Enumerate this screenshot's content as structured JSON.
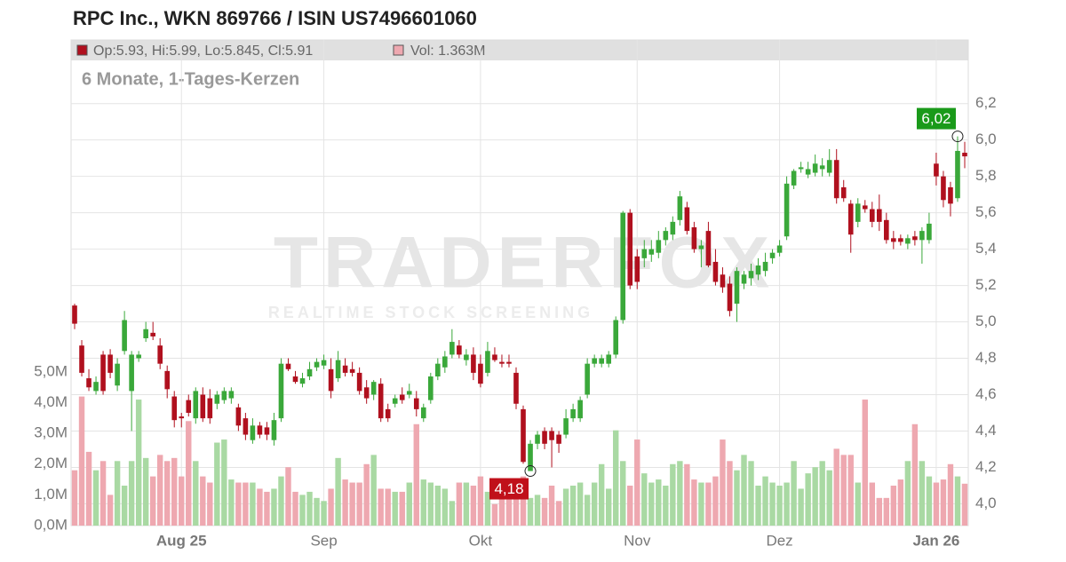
{
  "chart_data": {
    "type": "candlestick",
    "title": "RPC Inc., WKN 869766 / ISIN US7496601060",
    "subtitle": "6 Monate, 1-Tages-Kerzen",
    "legend": {
      "ohlc": "Op:5.93, Hi:5.99, Lo:5.845, Cl:5.91",
      "volume": "Vol: 1.363M"
    },
    "watermark": {
      "brand": "TRADERFOX",
      "tagline": "REALTIME STOCK SCREENING"
    },
    "annotations": [
      {
        "value": 6.02,
        "label": "6,02",
        "color": "#1a9a1a"
      },
      {
        "value": 4.18,
        "label": "4,18",
        "color": "#c0101a"
      }
    ],
    "categories": [
      null,
      null,
      null,
      null,
      null,
      null,
      null,
      null,
      null,
      null,
      null,
      null,
      null,
      null,
      null,
      "Aug 25",
      null,
      null,
      null,
      null,
      null,
      null,
      null,
      null,
      null,
      null,
      null,
      null,
      null,
      null,
      null,
      null,
      null,
      null,
      null,
      "Sep",
      null,
      null,
      null,
      null,
      null,
      null,
      null,
      null,
      null,
      null,
      null,
      null,
      null,
      null,
      null,
      null,
      null,
      null,
      null,
      null,
      null,
      "Okt",
      null,
      null,
      null,
      null,
      null,
      null,
      null,
      null,
      null,
      null,
      null,
      null,
      null,
      null,
      null,
      null,
      null,
      null,
      null,
      null,
      null,
      "Nov",
      null,
      null,
      null,
      null,
      null,
      null,
      null,
      null,
      null,
      null,
      null,
      null,
      null,
      null,
      null,
      null,
      null,
      null,
      null,
      "Dez",
      null,
      null,
      null,
      null,
      null,
      null,
      null,
      null,
      null,
      null,
      null,
      null,
      null,
      null,
      null,
      null,
      null,
      null,
      null,
      null,
      null,
      "Jan 26",
      null,
      null,
      null,
      null
    ],
    "open": [
      5.09,
      4.87,
      4.69,
      4.62,
      4.82,
      4.82,
      4.65,
      4.84,
      4.62,
      4.8,
      4.91,
      4.94,
      4.87,
      4.73,
      4.59,
      4.48,
      4.57,
      4.47,
      4.6,
      4.58,
      4.55,
      4.57,
      4.58,
      4.53,
      4.47,
      4.35,
      4.43,
      4.42,
      4.35,
      4.47,
      4.77,
      4.7,
      4.66,
      4.7,
      4.75,
      4.76,
      4.74,
      4.69,
      4.76,
      4.74,
      4.72,
      4.64,
      4.6,
      4.66,
      4.52,
      4.55,
      4.6,
      4.6,
      4.58,
      4.47,
      4.57,
      4.7,
      4.75,
      4.82,
      4.87,
      4.79,
      4.82,
      4.77,
      4.72,
      4.82,
      4.78,
      4.78,
      4.72,
      4.52,
      4.18,
      4.33,
      4.4,
      4.4,
      4.38,
      4.38,
      4.47,
      4.47,
      4.6,
      4.77,
      4.77,
      4.77,
      4.82,
      5.01,
      5.6,
      5.36,
      5.35,
      5.37,
      5.38,
      5.45,
      5.48,
      5.56,
      5.63,
      5.52,
      5.4,
      5.5,
      5.33,
      5.26,
      5.21,
      5.1,
      5.21,
      5.24,
      5.26,
      5.28,
      5.35,
      5.38,
      5.47,
      5.75,
      5.84,
      5.81,
      5.82,
      5.84,
      5.82,
      5.89,
      5.74,
      5.65,
      5.55,
      5.64,
      5.62,
      5.62,
      5.56,
      5.46,
      5.46,
      5.43,
      5.47,
      5.45,
      5.45,
      5.87,
      5.8,
      5.74,
      5.68,
      5.93
    ],
    "high": [
      5.1,
      4.9,
      4.74,
      4.7,
      4.84,
      4.85,
      4.8,
      5.06,
      4.84,
      4.84,
      5.0,
      5.0,
      4.91,
      4.76,
      4.62,
      4.5,
      4.6,
      4.64,
      4.64,
      4.63,
      4.62,
      4.64,
      4.64,
      4.55,
      4.5,
      4.47,
      4.45,
      4.45,
      4.5,
      4.8,
      4.8,
      4.73,
      4.72,
      4.78,
      4.8,
      4.82,
      4.8,
      4.84,
      4.8,
      4.78,
      4.75,
      4.68,
      4.68,
      4.69,
      4.55,
      4.6,
      4.64,
      4.66,
      4.62,
      4.55,
      4.72,
      4.8,
      4.84,
      4.96,
      4.9,
      4.85,
      4.86,
      4.82,
      4.89,
      4.86,
      4.82,
      4.82,
      4.75,
      4.54,
      4.35,
      4.4,
      4.42,
      4.42,
      4.4,
      4.52,
      4.55,
      4.59,
      4.8,
      4.82,
      4.82,
      4.84,
      5.03,
      5.61,
      5.62,
      5.4,
      5.45,
      5.45,
      5.5,
      5.52,
      5.58,
      5.72,
      5.66,
      5.55,
      5.45,
      5.55,
      5.4,
      5.3,
      5.25,
      5.3,
      5.28,
      5.32,
      5.35,
      5.38,
      5.4,
      5.45,
      5.8,
      5.84,
      5.88,
      5.88,
      5.92,
      5.9,
      5.95,
      5.95,
      5.78,
      5.67,
      5.68,
      5.67,
      5.66,
      5.7,
      5.6,
      5.5,
      5.48,
      5.48,
      5.5,
      5.52,
      5.6,
      5.93,
      5.83,
      5.77,
      6.02,
      5.99
    ],
    "low": [
      4.96,
      4.7,
      4.62,
      4.6,
      4.6,
      4.69,
      4.62,
      4.82,
      4.4,
      4.78,
      4.89,
      4.9,
      4.74,
      4.58,
      4.42,
      4.42,
      4.48,
      4.44,
      4.45,
      4.44,
      4.52,
      4.55,
      4.55,
      4.4,
      4.35,
      4.33,
      4.36,
      4.35,
      4.32,
      4.45,
      4.73,
      4.66,
      4.64,
      4.68,
      4.73,
      4.74,
      4.58,
      4.67,
      4.7,
      4.7,
      4.6,
      4.55,
      4.57,
      4.45,
      4.45,
      4.53,
      4.55,
      4.58,
      4.48,
      4.45,
      4.55,
      4.68,
      4.72,
      4.8,
      4.8,
      4.76,
      4.68,
      4.64,
      4.7,
      4.78,
      4.75,
      4.75,
      4.52,
      4.22,
      4.18,
      4.3,
      4.3,
      4.2,
      4.28,
      4.36,
      4.45,
      4.45,
      4.58,
      4.75,
      4.75,
      4.75,
      4.8,
      4.99,
      5.18,
      5.18,
      5.3,
      5.33,
      5.35,
      5.42,
      5.45,
      5.53,
      5.48,
      5.38,
      5.3,
      5.3,
      5.2,
      5.16,
      5.03,
      5.0,
      5.18,
      5.2,
      5.23,
      5.25,
      5.32,
      5.36,
      5.45,
      5.73,
      5.82,
      5.79,
      5.8,
      5.8,
      5.8,
      5.65,
      5.66,
      5.38,
      5.52,
      5.6,
      5.52,
      5.5,
      5.43,
      5.4,
      5.42,
      5.4,
      5.42,
      5.32,
      5.43,
      5.75,
      5.63,
      5.58,
      5.66,
      5.845
    ],
    "close": [
      4.99,
      4.72,
      4.64,
      4.67,
      4.62,
      4.72,
      4.77,
      5.01,
      4.82,
      4.82,
      4.96,
      4.92,
      4.77,
      4.63,
      4.46,
      4.47,
      4.5,
      4.62,
      4.47,
      4.47,
      4.6,
      4.62,
      4.62,
      4.43,
      4.38,
      4.43,
      4.38,
      4.38,
      4.46,
      4.77,
      4.74,
      4.67,
      4.69,
      4.74,
      4.78,
      4.79,
      4.62,
      4.79,
      4.72,
      4.72,
      4.62,
      4.58,
      4.67,
      4.47,
      4.47,
      4.58,
      4.57,
      4.62,
      4.52,
      4.53,
      4.7,
      4.77,
      4.81,
      4.89,
      4.82,
      4.82,
      4.72,
      4.66,
      4.84,
      4.79,
      4.77,
      4.77,
      4.55,
      4.23,
      4.33,
      4.38,
      4.33,
      4.35,
      4.33,
      4.47,
      4.52,
      4.57,
      4.77,
      4.8,
      4.8,
      4.82,
      5.01,
      5.6,
      5.2,
      5.22,
      5.4,
      5.4,
      5.45,
      5.5,
      5.55,
      5.69,
      5.5,
      5.4,
      5.42,
      5.31,
      5.22,
      5.19,
      5.06,
      5.28,
      5.26,
      5.28,
      5.31,
      5.33,
      5.38,
      5.42,
      5.76,
      5.83,
      5.85,
      5.84,
      5.87,
      5.86,
      5.89,
      5.68,
      5.68,
      5.48,
      5.65,
      5.62,
      5.55,
      5.55,
      5.45,
      5.44,
      5.44,
      5.46,
      5.45,
      5.5,
      5.54,
      5.8,
      5.67,
      5.65,
      5.94,
      5.91
    ],
    "volume": [
      1.8,
      4.2,
      2.4,
      1.8,
      2.1,
      1.0,
      2.1,
      1.3,
      2.1,
      4.1,
      2.2,
      1.6,
      2.3,
      2.1,
      2.2,
      1.6,
      3.4,
      2.1,
      1.6,
      1.4,
      2.7,
      2.8,
      1.5,
      1.4,
      1.4,
      1.4,
      1.2,
      1.1,
      1.2,
      1.6,
      1.9,
      1.1,
      1.0,
      1.1,
      0.9,
      0.8,
      1.2,
      2.2,
      1.5,
      1.4,
      1.4,
      2.0,
      2.3,
      1.2,
      1.2,
      1.1,
      1.1,
      1.4,
      3.3,
      1.5,
      1.4,
      1.3,
      1.2,
      0.8,
      1.4,
      1.4,
      1.3,
      1.6,
      1.1,
      0.7,
      1.2,
      1.1,
      1.2,
      1.6,
      0.9,
      1.0,
      0.9,
      1.3,
      0.8,
      1.2,
      1.3,
      1.4,
      1.0,
      1.4,
      2.0,
      1.2,
      3.1,
      2.1,
      1.3,
      2.8,
      1.7,
      1.4,
      1.5,
      1.3,
      2.0,
      2.1,
      2.0,
      1.5,
      1.4,
      1.4,
      1.6,
      2.8,
      2.1,
      1.8,
      2.3,
      2.1,
      1.3,
      1.6,
      1.4,
      1.3,
      1.4,
      2.1,
      1.2,
      1.7,
      1.9,
      2.1,
      1.8,
      2.5,
      2.3,
      2.3,
      1.4,
      4.1,
      1.4,
      0.9,
      0.9,
      1.3,
      1.5,
      2.1,
      3.3,
      2.1,
      1.6,
      1.4,
      1.5,
      2.0,
      1.6,
      1.363
    ],
    "up_color": "#3aa83a",
    "down_color": "#b0101e",
    "volume_up_color": "#a9d9a3",
    "volume_down_color": "#eea8b0",
    "ylim": [
      3.88,
      6.55
    ],
    "yticks": [
      {
        "value": 4.0,
        "label": "4,0"
      },
      {
        "value": 4.2,
        "label": "4,2"
      },
      {
        "value": 4.4,
        "label": "4,4"
      },
      {
        "value": 4.6,
        "label": "4,6"
      },
      {
        "value": 4.8,
        "label": "4,8"
      },
      {
        "value": 5.0,
        "label": "5,0"
      },
      {
        "value": 5.2,
        "label": "5,2"
      },
      {
        "value": 5.4,
        "label": "5,4"
      },
      {
        "value": 5.6,
        "label": "5,6"
      },
      {
        "value": 5.8,
        "label": "5,8"
      },
      {
        "value": 6.0,
        "label": "6,0"
      },
      {
        "value": 6.2,
        "label": "6,2"
      }
    ],
    "y2lim": [
      0,
      15.8
    ],
    "y2ticks": [
      {
        "value": 0,
        "label": "0,0M"
      },
      {
        "value": 1,
        "label": "1,0M"
      },
      {
        "value": 2,
        "label": "2,0M"
      },
      {
        "value": 3,
        "label": "3,0M"
      },
      {
        "value": 4,
        "label": "4,0M"
      },
      {
        "value": 5,
        "label": "5,0M"
      }
    ],
    "grid": true
  }
}
